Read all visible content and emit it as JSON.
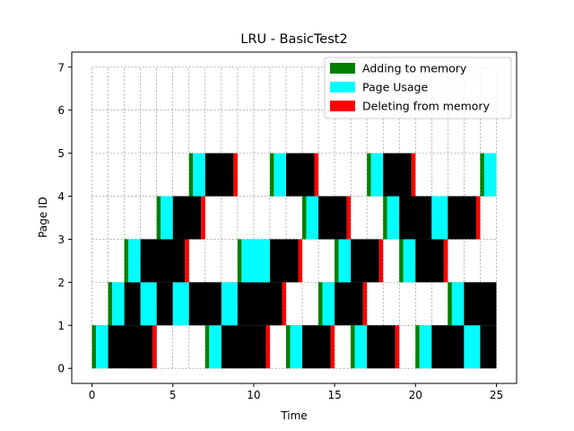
{
  "chart_data": {
    "type": "bar",
    "title": "LRU - BasicTest2",
    "xlabel": "Time",
    "ylabel": "Page ID",
    "xlim": [
      -1.25,
      26.25
    ],
    "ylim": [
      -0.35,
      7.35
    ],
    "xticks": [
      0,
      5,
      10,
      15,
      20,
      25
    ],
    "yticks": [
      0,
      1,
      2,
      3,
      4,
      5,
      6,
      7
    ],
    "grid": true,
    "grid_x_step": 1,
    "grid_x_range": [
      0,
      25
    ],
    "grid_y_range": [
      0,
      7
    ],
    "legend_position": "upper-right",
    "colors": {
      "add": "#008000",
      "use": "#00ffff",
      "run": "#000000",
      "del": "#ff0000"
    },
    "legend": [
      {
        "key": "add",
        "label": "Adding to memory"
      },
      {
        "key": "use",
        "label": "Page Usage"
      },
      {
        "key": "del",
        "label": "Deleting from memory"
      }
    ],
    "segments": [
      {
        "page": 0,
        "type": "add",
        "start": 0,
        "end": 0.25
      },
      {
        "page": 0,
        "type": "use",
        "start": 0.25,
        "end": 1
      },
      {
        "page": 0,
        "type": "run",
        "start": 1,
        "end": 3.75
      },
      {
        "page": 0,
        "type": "del",
        "start": 3.75,
        "end": 4
      },
      {
        "page": 0,
        "type": "add",
        "start": 7,
        "end": 7.25
      },
      {
        "page": 0,
        "type": "use",
        "start": 7.25,
        "end": 8
      },
      {
        "page": 0,
        "type": "run",
        "start": 8,
        "end": 10.75
      },
      {
        "page": 0,
        "type": "del",
        "start": 10.75,
        "end": 11
      },
      {
        "page": 0,
        "type": "add",
        "start": 12,
        "end": 12.25
      },
      {
        "page": 0,
        "type": "use",
        "start": 12.25,
        "end": 13
      },
      {
        "page": 0,
        "type": "run",
        "start": 13,
        "end": 14.75
      },
      {
        "page": 0,
        "type": "del",
        "start": 14.75,
        "end": 15
      },
      {
        "page": 0,
        "type": "add",
        "start": 16,
        "end": 16.25
      },
      {
        "page": 0,
        "type": "use",
        "start": 16.25,
        "end": 17
      },
      {
        "page": 0,
        "type": "run",
        "start": 17,
        "end": 18.75
      },
      {
        "page": 0,
        "type": "del",
        "start": 18.75,
        "end": 19
      },
      {
        "page": 0,
        "type": "add",
        "start": 20,
        "end": 20.25
      },
      {
        "page": 0,
        "type": "use",
        "start": 20.25,
        "end": 21
      },
      {
        "page": 0,
        "type": "run",
        "start": 21,
        "end": 23
      },
      {
        "page": 0,
        "type": "use",
        "start": 23,
        "end": 24
      },
      {
        "page": 0,
        "type": "run",
        "start": 24,
        "end": 25
      },
      {
        "page": 1,
        "type": "add",
        "start": 1,
        "end": 1.25
      },
      {
        "page": 1,
        "type": "use",
        "start": 1.25,
        "end": 2
      },
      {
        "page": 1,
        "type": "run",
        "start": 2,
        "end": 3
      },
      {
        "page": 1,
        "type": "use",
        "start": 3,
        "end": 4
      },
      {
        "page": 1,
        "type": "run",
        "start": 4,
        "end": 5
      },
      {
        "page": 1,
        "type": "use",
        "start": 5,
        "end": 6
      },
      {
        "page": 1,
        "type": "run",
        "start": 6,
        "end": 8
      },
      {
        "page": 1,
        "type": "use",
        "start": 8,
        "end": 9
      },
      {
        "page": 1,
        "type": "run",
        "start": 9,
        "end": 11.75
      },
      {
        "page": 1,
        "type": "del",
        "start": 11.75,
        "end": 12
      },
      {
        "page": 1,
        "type": "add",
        "start": 14,
        "end": 14.25
      },
      {
        "page": 1,
        "type": "use",
        "start": 14.25,
        "end": 15
      },
      {
        "page": 1,
        "type": "run",
        "start": 15,
        "end": 16.75
      },
      {
        "page": 1,
        "type": "del",
        "start": 16.75,
        "end": 17
      },
      {
        "page": 1,
        "type": "add",
        "start": 22,
        "end": 22.25
      },
      {
        "page": 1,
        "type": "use",
        "start": 22.25,
        "end": 23
      },
      {
        "page": 1,
        "type": "run",
        "start": 23,
        "end": 25
      },
      {
        "page": 2,
        "type": "add",
        "start": 2,
        "end": 2.25
      },
      {
        "page": 2,
        "type": "use",
        "start": 2.25,
        "end": 3
      },
      {
        "page": 2,
        "type": "run",
        "start": 3,
        "end": 5.75
      },
      {
        "page": 2,
        "type": "del",
        "start": 5.75,
        "end": 6
      },
      {
        "page": 2,
        "type": "add",
        "start": 9,
        "end": 9.25
      },
      {
        "page": 2,
        "type": "use",
        "start": 9.25,
        "end": 11
      },
      {
        "page": 2,
        "type": "run",
        "start": 11,
        "end": 12.75
      },
      {
        "page": 2,
        "type": "del",
        "start": 12.75,
        "end": 13
      },
      {
        "page": 2,
        "type": "add",
        "start": 15,
        "end": 15.25
      },
      {
        "page": 2,
        "type": "use",
        "start": 15.25,
        "end": 16
      },
      {
        "page": 2,
        "type": "run",
        "start": 16,
        "end": 17.75
      },
      {
        "page": 2,
        "type": "del",
        "start": 17.75,
        "end": 18
      },
      {
        "page": 2,
        "type": "add",
        "start": 19,
        "end": 19.25
      },
      {
        "page": 2,
        "type": "use",
        "start": 19.25,
        "end": 20
      },
      {
        "page": 2,
        "type": "run",
        "start": 20,
        "end": 21.75
      },
      {
        "page": 2,
        "type": "del",
        "start": 21.75,
        "end": 22
      },
      {
        "page": 3,
        "type": "add",
        "start": 4,
        "end": 4.25
      },
      {
        "page": 3,
        "type": "use",
        "start": 4.25,
        "end": 5
      },
      {
        "page": 3,
        "type": "run",
        "start": 5,
        "end": 6.75
      },
      {
        "page": 3,
        "type": "del",
        "start": 6.75,
        "end": 7
      },
      {
        "page": 3,
        "type": "add",
        "start": 13,
        "end": 13.25
      },
      {
        "page": 3,
        "type": "use",
        "start": 13.25,
        "end": 14
      },
      {
        "page": 3,
        "type": "run",
        "start": 14,
        "end": 15.75
      },
      {
        "page": 3,
        "type": "del",
        "start": 15.75,
        "end": 16
      },
      {
        "page": 3,
        "type": "add",
        "start": 18,
        "end": 18.25
      },
      {
        "page": 3,
        "type": "use",
        "start": 18.25,
        "end": 19
      },
      {
        "page": 3,
        "type": "run",
        "start": 19,
        "end": 21
      },
      {
        "page": 3,
        "type": "use",
        "start": 21,
        "end": 22
      },
      {
        "page": 3,
        "type": "run",
        "start": 22,
        "end": 23.75
      },
      {
        "page": 3,
        "type": "del",
        "start": 23.75,
        "end": 24
      },
      {
        "page": 4,
        "type": "add",
        "start": 6,
        "end": 6.25
      },
      {
        "page": 4,
        "type": "use",
        "start": 6.25,
        "end": 7
      },
      {
        "page": 4,
        "type": "run",
        "start": 7,
        "end": 8.75
      },
      {
        "page": 4,
        "type": "del",
        "start": 8.75,
        "end": 9
      },
      {
        "page": 4,
        "type": "add",
        "start": 11,
        "end": 11.25
      },
      {
        "page": 4,
        "type": "use",
        "start": 11.25,
        "end": 12
      },
      {
        "page": 4,
        "type": "run",
        "start": 12,
        "end": 13.75
      },
      {
        "page": 4,
        "type": "del",
        "start": 13.75,
        "end": 14
      },
      {
        "page": 4,
        "type": "add",
        "start": 17,
        "end": 17.25
      },
      {
        "page": 4,
        "type": "use",
        "start": 17.25,
        "end": 18
      },
      {
        "page": 4,
        "type": "run",
        "start": 18,
        "end": 19.75
      },
      {
        "page": 4,
        "type": "del",
        "start": 19.75,
        "end": 20
      },
      {
        "page": 4,
        "type": "add",
        "start": 24,
        "end": 24.25
      },
      {
        "page": 4,
        "type": "use",
        "start": 24.25,
        "end": 25
      }
    ]
  }
}
